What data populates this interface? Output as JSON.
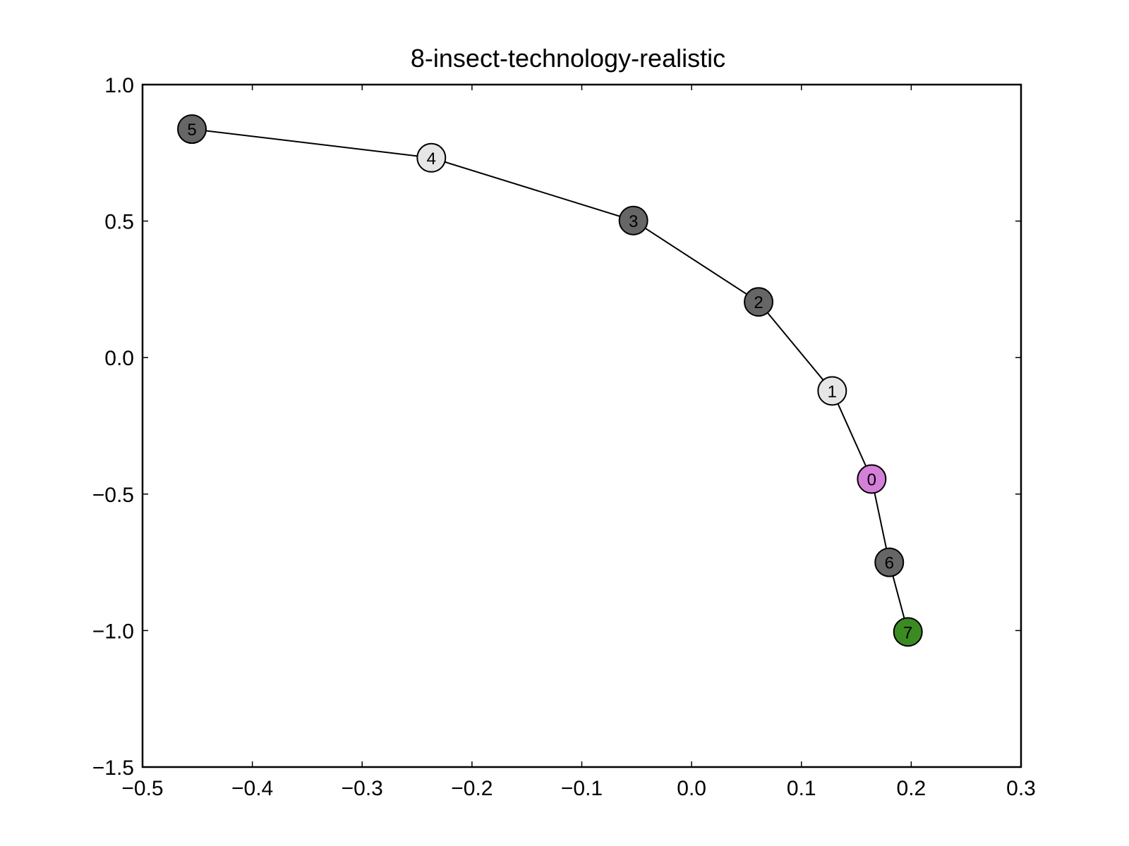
{
  "chart_data": {
    "type": "scatter",
    "title": "8-insect-technology-realistic",
    "xlabel": "",
    "ylabel": "",
    "xlim": [
      -0.5,
      0.3
    ],
    "ylim": [
      -1.5,
      1.0
    ],
    "x_ticks": [
      -0.5,
      -0.4,
      -0.3,
      -0.2,
      -0.1,
      0.0,
      0.1,
      0.2,
      0.3
    ],
    "x_tick_labels": [
      "−0.5",
      "−0.4",
      "−0.3",
      "−0.2",
      "−0.1",
      "0.0",
      "0.1",
      "0.2",
      "0.3"
    ],
    "y_ticks": [
      -1.5,
      -1.0,
      -0.5,
      0.0,
      0.5,
      1.0
    ],
    "y_tick_labels": [
      "−1.5",
      "−1.0",
      "−0.5",
      "0.0",
      "0.5",
      "1.0"
    ],
    "grid": false,
    "connection_order": [
      "5",
      "4",
      "3",
      "2",
      "1",
      "0",
      "6",
      "7"
    ],
    "points": [
      {
        "label": "0",
        "x": 0.164,
        "y": -0.445,
        "color": "#d580d8"
      },
      {
        "label": "1",
        "x": 0.128,
        "y": -0.122,
        "color": "#e6e6e6"
      },
      {
        "label": "2",
        "x": 0.061,
        "y": 0.204,
        "color": "#666666"
      },
      {
        "label": "3",
        "x": -0.053,
        "y": 0.502,
        "color": "#666666"
      },
      {
        "label": "4",
        "x": -0.237,
        "y": 0.732,
        "color": "#e6e6e6"
      },
      {
        "label": "5",
        "x": -0.455,
        "y": 0.837,
        "color": "#666666"
      },
      {
        "label": "6",
        "x": 0.18,
        "y": -0.75,
        "color": "#666666"
      },
      {
        "label": "7",
        "x": 0.197,
        "y": -1.005,
        "color": "#3b8a22"
      }
    ]
  }
}
